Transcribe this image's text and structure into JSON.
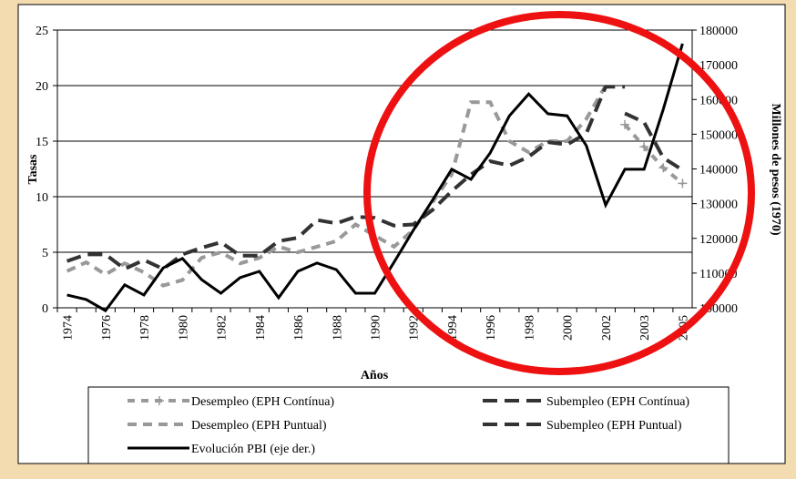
{
  "chart_data": {
    "type": "line",
    "categories": [
      "1974",
      null,
      "1976",
      null,
      "1978",
      null,
      "1980",
      null,
      "1982",
      null,
      "1984",
      null,
      "1986",
      null,
      "1988",
      null,
      "1990",
      null,
      "1992",
      null,
      "1994",
      null,
      "1996",
      null,
      "1998",
      null,
      "2000",
      null,
      "2002",
      null,
      "2003",
      null,
      "2005"
    ],
    "x_label": "Años",
    "y_label": "Tasas",
    "y2_label": "Millones de pesos (1970)",
    "ylim": [
      0,
      25
    ],
    "yticks": [
      0,
      5,
      10,
      15,
      20,
      25
    ],
    "y2lim": [
      100000,
      180000
    ],
    "y2ticks": [
      100000,
      110000,
      120000,
      130000,
      140000,
      150000,
      160000,
      170000,
      180000
    ],
    "grid": true,
    "series": [
      {
        "name": "Desempleo (EPH Contínua)",
        "color": "#999999",
        "dash": [
          8,
          7
        ],
        "marker": "plus",
        "values": [
          null,
          null,
          null,
          null,
          null,
          null,
          null,
          null,
          null,
          null,
          null,
          null,
          null,
          null,
          null,
          null,
          null,
          null,
          null,
          null,
          null,
          null,
          null,
          null,
          null,
          null,
          null,
          null,
          null,
          16.5,
          14.5,
          12.6,
          11.2
        ]
      },
      {
        "name": "Subempleo (EPH Contínua)",
        "color": "#333333",
        "dash": [
          16,
          8
        ],
        "values": [
          null,
          null,
          null,
          null,
          null,
          null,
          null,
          null,
          null,
          null,
          null,
          null,
          null,
          null,
          null,
          null,
          null,
          null,
          null,
          null,
          null,
          null,
          null,
          null,
          null,
          null,
          null,
          null,
          null,
          17.5,
          16.7,
          13.5,
          12.4
        ]
      },
      {
        "name": "Desempleo (EPH Puntual)",
        "color": "#999999",
        "dash": [
          10,
          7
        ],
        "values": [
          3.3,
          4.1,
          3.0,
          4.0,
          3.2,
          2.0,
          2.5,
          4.5,
          5.0,
          4.0,
          4.5,
          5.5,
          5.0,
          5.5,
          6.0,
          7.5,
          6.5,
          5.5,
          7.0,
          9.5,
          12.0,
          18.5,
          18.5,
          15.0,
          14.0,
          15.0,
          15.0,
          17.0,
          20.0,
          null,
          null,
          null,
          null
        ]
      },
      {
        "name": "Subempleo (EPH Puntual)",
        "color": "#333333",
        "dash": [
          16,
          8
        ],
        "values": [
          4.2,
          4.8,
          4.8,
          3.5,
          4.3,
          3.5,
          4.8,
          5.4,
          5.9,
          4.7,
          4.7,
          6.0,
          6.3,
          7.9,
          7.6,
          8.2,
          8.1,
          7.4,
          7.5,
          8.8,
          10.5,
          12.0,
          13.2,
          12.8,
          13.6,
          14.9,
          14.7,
          15.7,
          19.9,
          19.9,
          null,
          null,
          null
        ]
      },
      {
        "name": "Evolución PBI (eje der.)",
        "color": "#000000",
        "dash": [],
        "axis": "y2",
        "values": [
          103700,
          102400,
          99200,
          106600,
          103700,
          111500,
          114200,
          108100,
          104200,
          108700,
          110500,
          102900,
          110500,
          112900,
          111000,
          104200,
          104200,
          113100,
          122300,
          131000,
          139900,
          137000,
          144600,
          155300,
          161600,
          155900,
          155300,
          146700,
          129600,
          139900,
          139900,
          157200,
          176100
        ]
      }
    ]
  }
}
